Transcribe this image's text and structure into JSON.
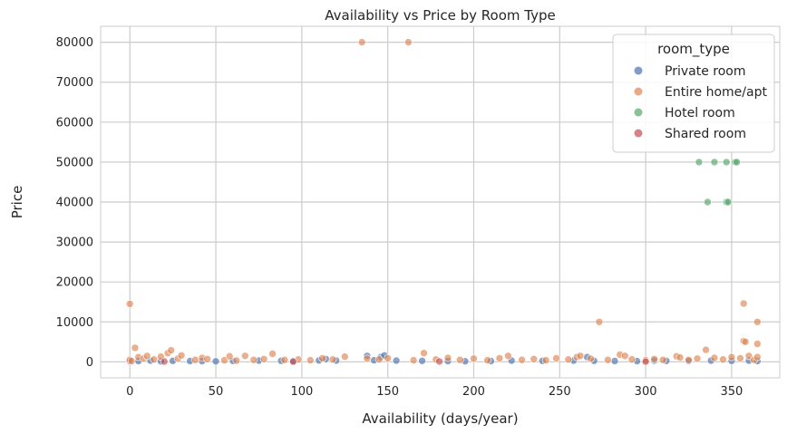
{
  "chart_data": {
    "type": "scatter",
    "title": "Availability vs Price by Room Type",
    "xlabel": "Availability (days/year)",
    "ylabel": "Price",
    "xlim": [
      -17,
      378
    ],
    "ylim": [
      -4000,
      84000
    ],
    "xticks": [
      0,
      50,
      100,
      150,
      200,
      250,
      300,
      350
    ],
    "yticks": [
      0,
      10000,
      20000,
      30000,
      40000,
      50000,
      60000,
      70000,
      80000
    ],
    "grid": true,
    "legend": {
      "title": "room_type",
      "position": "top-right"
    },
    "series": [
      {
        "name": "Private room",
        "color": "#4c72b0",
        "points": [
          [
            0,
            150
          ],
          [
            5,
            200
          ],
          [
            12,
            300
          ],
          [
            18,
            150
          ],
          [
            25,
            250
          ],
          [
            35,
            200
          ],
          [
            42,
            180
          ],
          [
            50,
            120
          ],
          [
            60,
            220
          ],
          [
            75,
            300
          ],
          [
            88,
            260
          ],
          [
            95,
            200
          ],
          [
            110,
            350
          ],
          [
            114,
            700
          ],
          [
            120,
            300
          ],
          [
            138,
            1500
          ],
          [
            142,
            400
          ],
          [
            146,
            1200
          ],
          [
            148,
            1600
          ],
          [
            155,
            300
          ],
          [
            170,
            250
          ],
          [
            185,
            200
          ],
          [
            195,
            150
          ],
          [
            210,
            200
          ],
          [
            222,
            300
          ],
          [
            240,
            250
          ],
          [
            258,
            300
          ],
          [
            266,
            1200
          ],
          [
            270,
            250
          ],
          [
            282,
            200
          ],
          [
            295,
            180
          ],
          [
            305,
            300
          ],
          [
            312,
            250
          ],
          [
            325,
            220
          ],
          [
            338,
            300
          ],
          [
            350,
            250
          ],
          [
            360,
            300
          ],
          [
            365,
            200
          ]
        ]
      },
      {
        "name": "Entire home/apt",
        "color": "#dd8452",
        "points": [
          [
            0,
            14500
          ],
          [
            0,
            500
          ],
          [
            1,
            200
          ],
          [
            3,
            3500
          ],
          [
            5,
            1200
          ],
          [
            8,
            800
          ],
          [
            10,
            1500
          ],
          [
            14,
            600
          ],
          [
            18,
            1300
          ],
          [
            22,
            2200
          ],
          [
            24,
            2900
          ],
          [
            28,
            800
          ],
          [
            30,
            1600
          ],
          [
            38,
            500
          ],
          [
            42,
            1000
          ],
          [
            45,
            700
          ],
          [
            55,
            400
          ],
          [
            58,
            1400
          ],
          [
            62,
            300
          ],
          [
            67,
            1500
          ],
          [
            72,
            500
          ],
          [
            78,
            700
          ],
          [
            83,
            2000
          ],
          [
            90,
            500
          ],
          [
            98,
            600
          ],
          [
            105,
            400
          ],
          [
            112,
            900
          ],
          [
            118,
            600
          ],
          [
            125,
            1300
          ],
          [
            135,
            80000
          ],
          [
            138,
            800
          ],
          [
            145,
            600
          ],
          [
            150,
            900
          ],
          [
            162,
            80000
          ],
          [
            165,
            400
          ],
          [
            171,
            2200
          ],
          [
            178,
            600
          ],
          [
            185,
            1000
          ],
          [
            192,
            500
          ],
          [
            200,
            800
          ],
          [
            208,
            400
          ],
          [
            215,
            900
          ],
          [
            220,
            1500
          ],
          [
            228,
            500
          ],
          [
            235,
            700
          ],
          [
            242,
            400
          ],
          [
            248,
            900
          ],
          [
            255,
            600
          ],
          [
            260,
            1200
          ],
          [
            262,
            1500
          ],
          [
            268,
            800
          ],
          [
            273,
            10000
          ],
          [
            278,
            500
          ],
          [
            285,
            1800
          ],
          [
            288,
            1500
          ],
          [
            292,
            600
          ],
          [
            300,
            400
          ],
          [
            305,
            700
          ],
          [
            310,
            500
          ],
          [
            318,
            1400
          ],
          [
            320,
            1100
          ],
          [
            325,
            500
          ],
          [
            330,
            800
          ],
          [
            335,
            3000
          ],
          [
            340,
            1000
          ],
          [
            345,
            600
          ],
          [
            350,
            1200
          ],
          [
            355,
            900
          ],
          [
            357,
            14600
          ],
          [
            357,
            5200
          ],
          [
            358,
            5000
          ],
          [
            360,
            1500
          ],
          [
            363,
            500
          ],
          [
            365,
            10000
          ],
          [
            365,
            4500
          ],
          [
            365,
            1200
          ]
        ]
      },
      {
        "name": "Hotel room",
        "color": "#55a868",
        "points": [
          [
            331,
            50000
          ],
          [
            336,
            40000
          ],
          [
            340,
            50000
          ],
          [
            347,
            50000
          ],
          [
            347,
            40000
          ],
          [
            348,
            40000
          ],
          [
            352,
            50000
          ],
          [
            353,
            50000
          ]
        ]
      },
      {
        "name": "Shared room",
        "color": "#c44e52",
        "points": [
          [
            20,
            80
          ],
          [
            95,
            60
          ],
          [
            180,
            100
          ],
          [
            300,
            70
          ]
        ]
      }
    ]
  }
}
